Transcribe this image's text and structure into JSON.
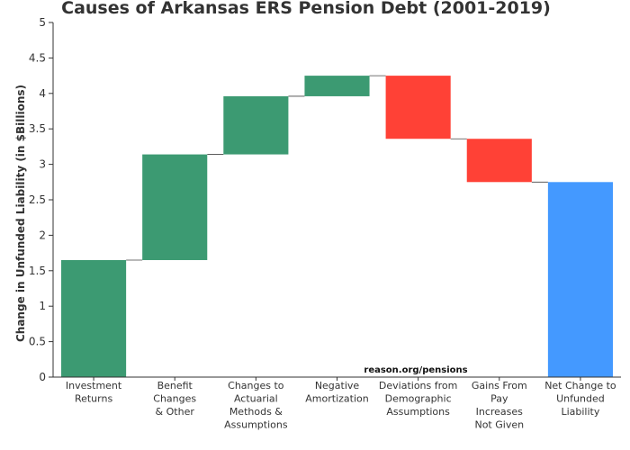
{
  "chart_data": {
    "type": "bar",
    "subtype": "waterfall",
    "title": "Causes of Arkansas ERS Pension Debt (2001-2019)",
    "ylabel": "Change in Unfunded Liability (in $Billions)",
    "xlabel": "",
    "ylim": [
      0,
      5
    ],
    "yticks": [
      "0",
      "0.5",
      "1",
      "1.5",
      "2",
      "2.5",
      "3",
      "3.5",
      "4",
      "4.5",
      "5"
    ],
    "grid": false,
    "source_note": "reason.org/pensions",
    "colors": {
      "increase": "#3c9a72",
      "decrease": "#ff4136",
      "total": "#4499ff"
    },
    "categories": [
      [
        "Investment",
        "Returns"
      ],
      [
        "Benefit",
        "Changes",
        "& Other"
      ],
      [
        "Changes to",
        "Actuarial",
        "Methods &",
        "Assumptions"
      ],
      [
        "Negative",
        "Amortization"
      ],
      [
        "Deviations from",
        "Demographic",
        "Assumptions"
      ],
      [
        "Gains From",
        "Pay",
        "Increases",
        "Not Given"
      ],
      [
        "Net Change to",
        "Unfunded",
        "Liability"
      ]
    ],
    "bars": [
      {
        "kind": "increase",
        "start": 0,
        "end": 1.65
      },
      {
        "kind": "increase",
        "start": 1.65,
        "end": 3.14
      },
      {
        "kind": "increase",
        "start": 3.14,
        "end": 3.96
      },
      {
        "kind": "increase",
        "start": 3.96,
        "end": 4.25
      },
      {
        "kind": "decrease",
        "start": 4.25,
        "end": 3.36
      },
      {
        "kind": "decrease",
        "start": 3.36,
        "end": 2.75
      },
      {
        "kind": "total",
        "start": 0,
        "end": 2.75
      }
    ]
  }
}
